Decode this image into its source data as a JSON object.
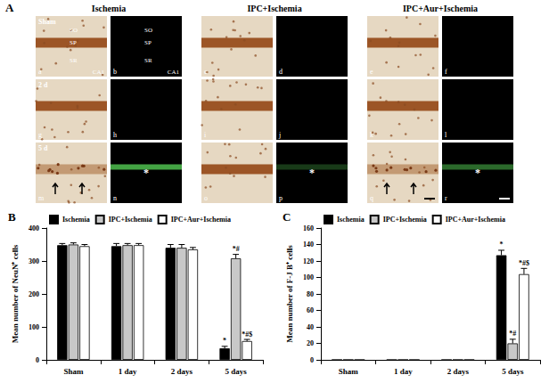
{
  "figure": {
    "label": "A",
    "columns": [
      "Ischemia",
      "IPC+Ischemia",
      "IPC+Aur+Ischemia"
    ],
    "rows": [
      "Sham",
      "2 d",
      "5 d"
    ],
    "panels": [
      [
        "a",
        "b",
        "c",
        "d",
        "e",
        "f"
      ],
      [
        "g",
        "h",
        "i",
        "j",
        "k",
        "l"
      ],
      [
        "m",
        "n",
        "o",
        "p",
        "q",
        "r"
      ]
    ],
    "layers": [
      "SO",
      "SP",
      "SR"
    ],
    "region": "CA1",
    "marked_panels": [
      "n",
      "p",
      "r"
    ],
    "mark": "*"
  },
  "chart_data": [
    {
      "type": "bar",
      "title": "B",
      "y_label": "Mean number of NeuN⁺ cells",
      "categories": [
        "Sham",
        "1 day",
        "2 days",
        "5 days"
      ],
      "series": [
        {
          "name": "Ischemia",
          "color": "#000000",
          "values": [
            348,
            345,
            340,
            35
          ],
          "errors": [
            5,
            8,
            10,
            6
          ],
          "annotations": [
            null,
            null,
            null,
            "*"
          ]
        },
        {
          "name": "IPC+Ischemia",
          "color": "#c8c8c8",
          "values": [
            350,
            348,
            340,
            308
          ],
          "errors": [
            5,
            5,
            10,
            12
          ],
          "annotations": [
            null,
            null,
            null,
            "*#"
          ]
        },
        {
          "name": "IPC+Aur+Ischemia",
          "color": "#ffffff",
          "values": [
            345,
            348,
            335,
            57
          ],
          "errors": [
            5,
            5,
            6,
            5
          ],
          "annotations": [
            null,
            null,
            null,
            "*#$"
          ]
        }
      ],
      "ylim": [
        0,
        400
      ],
      "yticks": [
        0,
        100,
        200,
        300,
        400
      ],
      "grid": false,
      "legend": "top"
    },
    {
      "type": "bar",
      "title": "C",
      "y_label": "Mean number of F-J B⁺ cells",
      "categories": [
        "Sham",
        "1 day",
        "2 days",
        "5 days"
      ],
      "series": [
        {
          "name": "Ischemia",
          "color": "#000000",
          "values": [
            0,
            0,
            0,
            127
          ],
          "errors": [
            0,
            0,
            0,
            6
          ],
          "annotations": [
            null,
            null,
            null,
            "*"
          ]
        },
        {
          "name": "IPC+Ischemia",
          "color": "#c8c8c8",
          "values": [
            0,
            0,
            0,
            20
          ],
          "errors": [
            0,
            0,
            0,
            5
          ],
          "annotations": [
            null,
            null,
            null,
            "*#"
          ]
        },
        {
          "name": "IPC+Aur+Ischemia",
          "color": "#ffffff",
          "values": [
            0,
            0,
            0,
            104
          ],
          "errors": [
            0,
            0,
            0,
            7
          ],
          "annotations": [
            null,
            null,
            null,
            "*#$"
          ]
        }
      ],
      "ylim": [
        0,
        160
      ],
      "yticks": [
        0,
        20,
        40,
        60,
        80,
        100,
        120,
        140,
        160
      ],
      "grid": false,
      "legend": "top"
    }
  ]
}
